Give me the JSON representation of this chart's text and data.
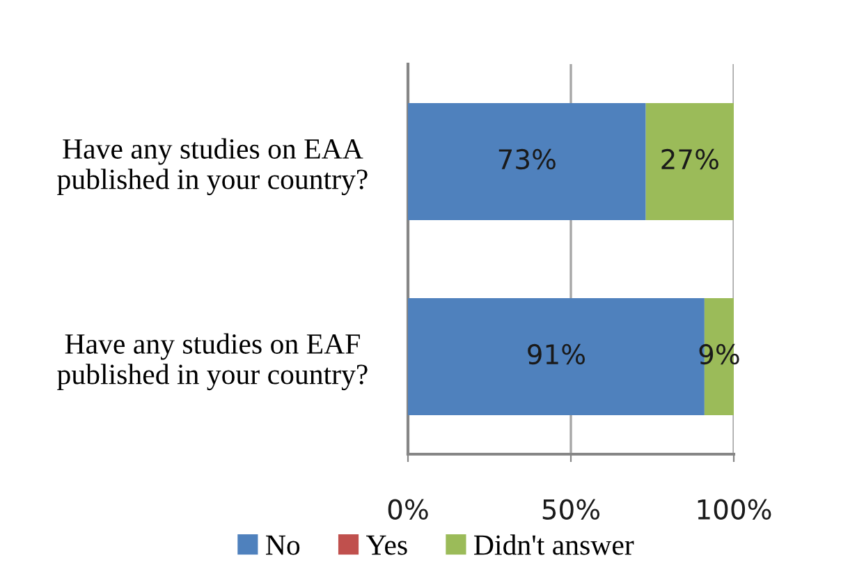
{
  "chart_data": {
    "type": "bar",
    "orientation": "horizontal",
    "stacked": true,
    "categories": [
      "Have any studies on EAA\npublished in your country?",
      "Have any studies on EAF\npublished in your country?"
    ],
    "series": [
      {
        "name": "No",
        "color": "#4f81bd",
        "values": [
          73,
          91
        ],
        "value_labels": [
          "73%",
          "91%"
        ]
      },
      {
        "name": "Yes",
        "color": "#c0504d",
        "values": [
          0,
          0
        ],
        "value_labels": [
          null,
          null
        ]
      },
      {
        "name": "Didn't answer",
        "color": "#9bbb59",
        "values": [
          27,
          9
        ],
        "value_labels": [
          "27%",
          "9%"
        ]
      }
    ],
    "xlim": [
      0,
      100
    ],
    "xticks": [
      {
        "value": 0,
        "label": "0%"
      },
      {
        "value": 50,
        "label": "50%"
      },
      {
        "value": 100,
        "label": "100%"
      }
    ],
    "grid": "x",
    "legend": "bottom"
  }
}
